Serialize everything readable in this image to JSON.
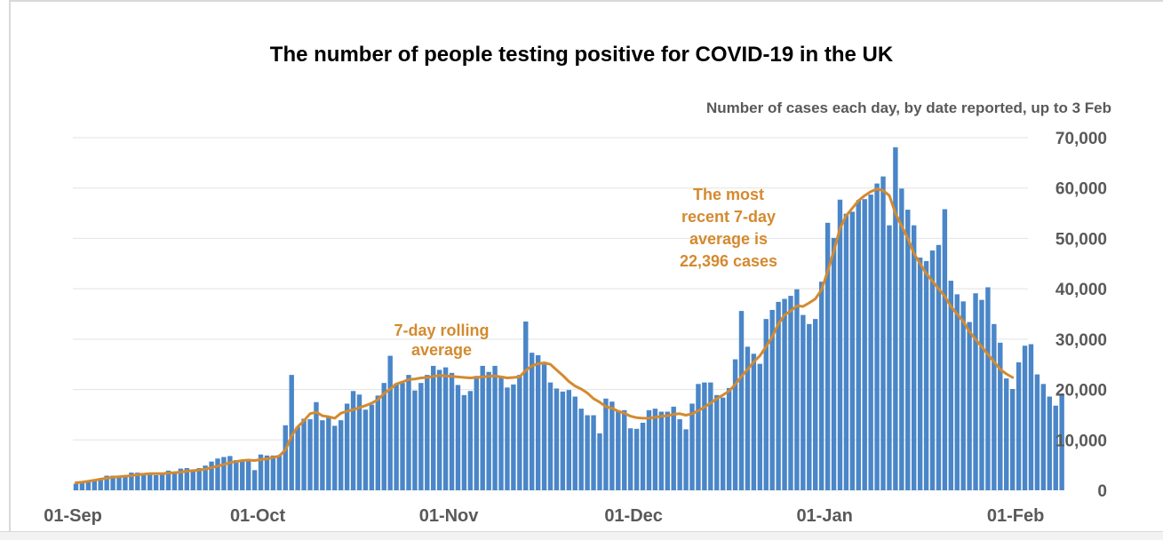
{
  "chart_data": {
    "type": "bar",
    "title": "The number of people testing positive for COVID-19 in the UK",
    "subtitle": "Number of cases each day, by date reported, up to 3 Feb",
    "ylim": [
      0,
      70000
    ],
    "y_ticks": [
      "0",
      "10,000",
      "20,000",
      "30,000",
      "40,000",
      "50,000",
      "60,000",
      "70,000"
    ],
    "y_tick_values": [
      0,
      10000,
      20000,
      30000,
      40000,
      50000,
      60000,
      70000
    ],
    "x_ticks": [
      {
        "label": "01-Sep",
        "date": "2020-09-01"
      },
      {
        "label": "01-Oct",
        "date": "2020-10-01"
      },
      {
        "label": "01-Nov",
        "date": "2020-11-01"
      },
      {
        "label": "01-Dec",
        "date": "2020-12-01"
      },
      {
        "label": "01-Jan",
        "date": "2021-01-01"
      },
      {
        "label": "01-Feb",
        "date": "2021-02-01"
      }
    ],
    "start_date": "2020-09-01",
    "bar_color": "#4a86c8",
    "line_color": "#d48a2f",
    "grid": true,
    "series": [
      {
        "type": "bar",
        "values": [
          1300,
          1700,
          1900,
          2200,
          2400,
          2900,
          2900,
          2700,
          3000,
          3500,
          3500,
          3300,
          3300,
          3000,
          3100,
          3900,
          3700,
          4300,
          4400,
          3900,
          4400,
          4900,
          5700,
          6300,
          6600,
          6800,
          6000,
          5700,
          6000,
          4000,
          7100,
          6900,
          6900,
          6900,
          12900,
          22900,
          12600,
          14200,
          14100,
          17500,
          13900,
          14500,
          12800,
          13900,
          17200,
          19700,
          19000,
          16000,
          17000,
          18800,
          21300,
          26700,
          21200,
          21300,
          22900,
          19800,
          21300,
          22900,
          24700,
          23900,
          24400,
          23300,
          20900,
          18900,
          19700,
          22700,
          24700,
          23500,
          24700,
          22700,
          20400,
          21000,
          22900,
          33500,
          27300,
          26800,
          25000,
          21400,
          20200,
          19600,
          19900,
          18600,
          16200,
          14900,
          14900,
          11300,
          18200,
          17600,
          15900,
          15900,
          12300,
          12200,
          13400,
          15900,
          16200,
          15600,
          15600,
          16600,
          14100,
          12100,
          17200,
          21100,
          21400,
          21400,
          18900,
          18400,
          20300,
          26000,
          35600,
          28500,
          27100,
          25100,
          34000,
          35800,
          37400,
          38000,
          38600,
          39900,
          34800,
          33000,
          34000,
          41400,
          53100,
          50100,
          57700,
          54900,
          55300,
          57600,
          57800,
          58700,
          60900,
          62300,
          52600,
          68100,
          59900,
          55700,
          52600,
          46200,
          45500,
          47600,
          48700,
          55800,
          41600,
          38900,
          37500,
          33400,
          39100,
          37800,
          40300,
          33000,
          29300,
          22200,
          20100,
          25400,
          28700,
          29000,
          23000,
          21100,
          18600,
          16800,
          19200
        ]
      },
      {
        "type": "line",
        "start_index": 0,
        "values": [
          1500,
          1600,
          1800,
          2000,
          2200,
          2400,
          2600,
          2700,
          2800,
          2900,
          3100,
          3200,
          3300,
          3300,
          3300,
          3400,
          3500,
          3600,
          3800,
          3900,
          4000,
          4200,
          4500,
          4800,
          5100,
          5500,
          5700,
          5900,
          6000,
          5900,
          6100,
          6200,
          6500,
          6800,
          8000,
          10800,
          12600,
          13800,
          15200,
          15500,
          14800,
          14600,
          14300,
          15300,
          15700,
          16000,
          16400,
          16800,
          17300,
          18000,
          19200,
          20100,
          21100,
          21500,
          22000,
          22100,
          22300,
          22400,
          22600,
          22800,
          22700,
          22600,
          22500,
          22400,
          22300,
          22400,
          22500,
          22600,
          22700,
          22500,
          22300,
          22400,
          22500,
          23800,
          24700,
          25100,
          25300,
          25000,
          23900,
          22800,
          21600,
          20700,
          20100,
          19300,
          18200,
          17500,
          16600,
          16300,
          15700,
          15300,
          14700,
          14400,
          14300,
          14300,
          14500,
          14700,
          14800,
          15100,
          15200,
          14900,
          15200,
          15800,
          16500,
          17300,
          18200,
          18900,
          19700,
          21000,
          22600,
          24000,
          25500,
          26700,
          28500,
          30500,
          33000,
          34800,
          35600,
          36600,
          36500,
          37200,
          38000,
          39800,
          43500,
          47500,
          52000,
          54500,
          56000,
          57500,
          58500,
          59300,
          59800,
          59500,
          58500,
          55000,
          52500,
          50000,
          47000,
          45000,
          43000,
          41500,
          40000,
          38500,
          36500,
          35000,
          33500,
          31500,
          30000,
          28500,
          27000,
          25500,
          24000,
          23100,
          22396
        ]
      }
    ],
    "annotations": [
      {
        "lines": [
          "7-day rolling",
          "average"
        ]
      },
      {
        "lines": [
          "The most",
          "recent 7-day",
          "average is",
          "22,396 cases"
        ]
      }
    ]
  }
}
